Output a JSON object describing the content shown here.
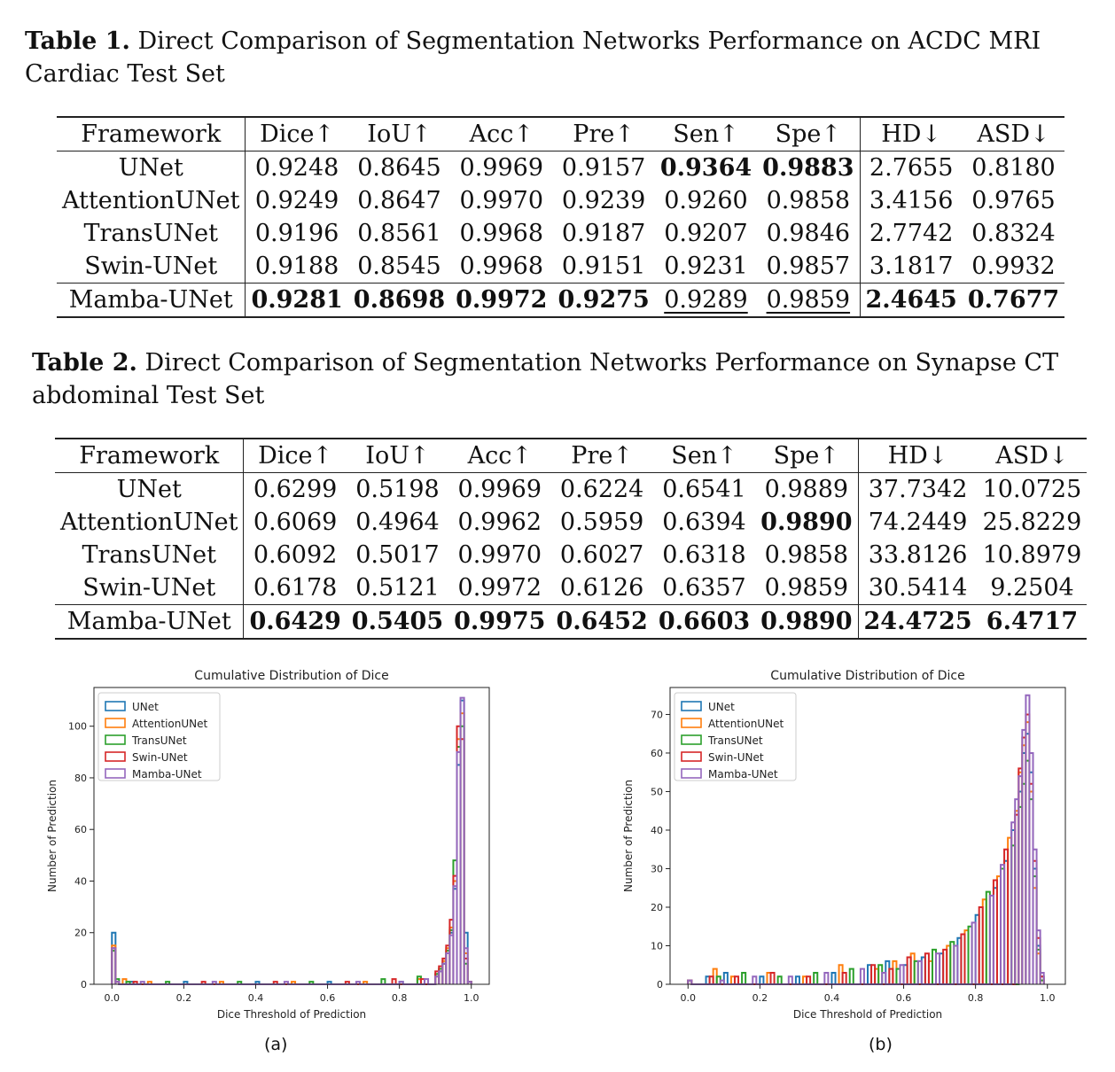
{
  "table1": {
    "label": "Table 1.",
    "caption": "Direct Comparison of Segmentation Networks Performance on ACDC MRI Cardiac Test Set",
    "headers": [
      "Framework",
      "Dice↑",
      "IoU↑",
      "Acc↑",
      "Pre↑",
      "Sen↑",
      "Spe↑",
      "HD↓",
      "ASD↓"
    ],
    "rows": [
      {
        "cells": [
          "UNet",
          "0.9248",
          "0.8645",
          "0.9969",
          "0.9157",
          "0.9364",
          "0.9883",
          "2.7655",
          "0.8180"
        ],
        "bold": [
          5,
          6
        ],
        "underline": []
      },
      {
        "cells": [
          "AttentionUNet",
          "0.9249",
          "0.8647",
          "0.9970",
          "0.9239",
          "0.9260",
          "0.9858",
          "3.4156",
          "0.9765"
        ],
        "bold": [],
        "underline": []
      },
      {
        "cells": [
          "TransUNet",
          "0.9196",
          "0.8561",
          "0.9968",
          "0.9187",
          "0.9207",
          "0.9846",
          "2.7742",
          "0.8324"
        ],
        "bold": [],
        "underline": []
      },
      {
        "cells": [
          "Swin-UNet",
          "0.9188",
          "0.8545",
          "0.9968",
          "0.9151",
          "0.9231",
          "0.9857",
          "3.1817",
          "0.9932"
        ],
        "bold": [],
        "underline": []
      },
      {
        "cells": [
          "Mamba-UNet",
          "0.9281",
          "0.8698",
          "0.9972",
          "0.9275",
          "0.9289",
          "0.9859",
          "2.4645",
          "0.7677"
        ],
        "bold": [
          1,
          2,
          3,
          4,
          7,
          8
        ],
        "underline": [
          5,
          6
        ]
      }
    ]
  },
  "table2": {
    "label": "Table 2.",
    "caption": "Direct Comparison of Segmentation Networks Performance on Synapse CT abdominal Test Set",
    "headers": [
      "Framework",
      "Dice↑",
      "IoU↑",
      "Acc↑",
      "Pre↑",
      "Sen↑",
      "Spe↑",
      "HD↓",
      "ASD↓"
    ],
    "rows": [
      {
        "cells": [
          "UNet",
          "0.6299",
          "0.5198",
          "0.9969",
          "0.6224",
          "0.6541",
          "0.9889",
          "37.7342",
          "10.0725"
        ],
        "bold": [],
        "underline": []
      },
      {
        "cells": [
          "AttentionUNet",
          "0.6069",
          "0.4964",
          "0.9962",
          "0.5959",
          "0.6394",
          "0.9890",
          "74.2449",
          "25.8229"
        ],
        "bold": [
          6
        ],
        "underline": []
      },
      {
        "cells": [
          "TransUNet",
          "0.6092",
          "0.5017",
          "0.9970",
          "0.6027",
          "0.6318",
          "0.9858",
          "33.8126",
          "10.8979"
        ],
        "bold": [],
        "underline": []
      },
      {
        "cells": [
          "Swin-UNet",
          "0.6178",
          "0.5121",
          "0.9972",
          "0.6126",
          "0.6357",
          "0.9859",
          "30.5414",
          "9.2504"
        ],
        "bold": [],
        "underline": []
      },
      {
        "cells": [
          "Mamba-UNet",
          "0.6429",
          "0.5405",
          "0.9975",
          "0.6452",
          "0.6603",
          "0.9890",
          "24.4725",
          "6.4717"
        ],
        "bold": [
          1,
          2,
          3,
          4,
          5,
          6,
          7,
          8
        ],
        "underline": []
      }
    ]
  },
  "chart_data": [
    {
      "type": "histogram",
      "title": "Cumulative Distribution of Dice",
      "xlabel": "Dice Threshold of Prediction",
      "ylabel": "Number of Prediction",
      "xlim": [
        -0.05,
        1.05
      ],
      "ylim": [
        0,
        115
      ],
      "xticks": [
        0.0,
        0.2,
        0.4,
        0.6,
        0.8,
        1.0
      ],
      "yticks": [
        0,
        20,
        40,
        60,
        80,
        100
      ],
      "legend_position": "top-left",
      "subplot_label": "(a)",
      "bin_width": 0.01,
      "series": [
        {
          "name": "UNet",
          "color": "#1f77b4",
          "bins": [
            [
              0.0,
              20
            ],
            [
              0.01,
              1
            ],
            [
              0.05,
              1
            ],
            [
              0.2,
              1
            ],
            [
              0.4,
              1
            ],
            [
              0.6,
              1
            ],
            [
              0.8,
              1
            ],
            [
              0.85,
              2
            ],
            [
              0.9,
              4
            ],
            [
              0.91,
              5
            ],
            [
              0.92,
              8
            ],
            [
              0.93,
              12
            ],
            [
              0.94,
              20
            ],
            [
              0.95,
              37
            ],
            [
              0.96,
              85
            ],
            [
              0.97,
              110
            ],
            [
              0.98,
              20
            ],
            [
              0.99,
              1
            ]
          ]
        },
        {
          "name": "AttentionUNet",
          "color": "#ff7f0e",
          "bins": [
            [
              0.0,
              15
            ],
            [
              0.01,
              1
            ],
            [
              0.03,
              2
            ],
            [
              0.1,
              1
            ],
            [
              0.3,
              1
            ],
            [
              0.5,
              1
            ],
            [
              0.7,
              1
            ],
            [
              0.85,
              2
            ],
            [
              0.9,
              3
            ],
            [
              0.91,
              6
            ],
            [
              0.92,
              9
            ],
            [
              0.93,
              14
            ],
            [
              0.94,
              22
            ],
            [
              0.95,
              40
            ],
            [
              0.96,
              95
            ],
            [
              0.97,
              105
            ],
            [
              0.98,
              12
            ],
            [
              0.99,
              1
            ]
          ]
        },
        {
          "name": "TransUNet",
          "color": "#2ca02c",
          "bins": [
            [
              0.0,
              13
            ],
            [
              0.01,
              2
            ],
            [
              0.04,
              1
            ],
            [
              0.15,
              1
            ],
            [
              0.35,
              1
            ],
            [
              0.55,
              1
            ],
            [
              0.75,
              2
            ],
            [
              0.85,
              3
            ],
            [
              0.9,
              4
            ],
            [
              0.91,
              6
            ],
            [
              0.92,
              8
            ],
            [
              0.93,
              13
            ],
            [
              0.94,
              21
            ],
            [
              0.95,
              48
            ],
            [
              0.96,
              92
            ],
            [
              0.97,
              100
            ],
            [
              0.98,
              8
            ],
            [
              0.99,
              1
            ]
          ]
        },
        {
          "name": "Swin-UNet",
          "color": "#d62728",
          "bins": [
            [
              0.0,
              14
            ],
            [
              0.01,
              1
            ],
            [
              0.06,
              1
            ],
            [
              0.25,
              1
            ],
            [
              0.45,
              1
            ],
            [
              0.65,
              1
            ],
            [
              0.78,
              2
            ],
            [
              0.86,
              2
            ],
            [
              0.9,
              5
            ],
            [
              0.91,
              7
            ],
            [
              0.92,
              10
            ],
            [
              0.93,
              15
            ],
            [
              0.94,
              25
            ],
            [
              0.95,
              42
            ],
            [
              0.96,
              100
            ],
            [
              0.97,
              95
            ],
            [
              0.98,
              10
            ],
            [
              0.99,
              1
            ]
          ]
        },
        {
          "name": "Mamba-UNet",
          "color": "#9467bd",
          "bins": [
            [
              0.0,
              14
            ],
            [
              0.01,
              1
            ],
            [
              0.08,
              1
            ],
            [
              0.28,
              1
            ],
            [
              0.48,
              1
            ],
            [
              0.68,
              1
            ],
            [
              0.8,
              1
            ],
            [
              0.87,
              2
            ],
            [
              0.9,
              3
            ],
            [
              0.91,
              5
            ],
            [
              0.92,
              8
            ],
            [
              0.93,
              12
            ],
            [
              0.94,
              19
            ],
            [
              0.95,
              38
            ],
            [
              0.96,
              90
            ],
            [
              0.97,
              111
            ],
            [
              0.98,
              14
            ],
            [
              0.99,
              1
            ]
          ]
        }
      ]
    },
    {
      "type": "histogram",
      "title": "Cumulative Distribution of Dice",
      "xlabel": "Dice Threshold of Prediction",
      "ylabel": "Number of Prediction",
      "xlim": [
        -0.05,
        1.05
      ],
      "ylim": [
        0,
        77
      ],
      "xticks": [
        0.0,
        0.2,
        0.4,
        0.6,
        0.8,
        1.0
      ],
      "yticks": [
        0,
        10,
        20,
        30,
        40,
        50,
        60,
        70
      ],
      "legend_position": "top-left",
      "subplot_label": "(b)",
      "bin_width": 0.01,
      "series": [
        {
          "name": "UNet",
          "color": "#1f77b4",
          "bins": [
            [
              0.0,
              1
            ],
            [
              0.05,
              2
            ],
            [
              0.1,
              3
            ],
            [
              0.2,
              2
            ],
            [
              0.3,
              2
            ],
            [
              0.4,
              3
            ],
            [
              0.5,
              5
            ],
            [
              0.55,
              6
            ],
            [
              0.6,
              5
            ],
            [
              0.65,
              7
            ],
            [
              0.7,
              8
            ],
            [
              0.75,
              12
            ],
            [
              0.8,
              18
            ],
            [
              0.85,
              25
            ],
            [
              0.88,
              32
            ],
            [
              0.9,
              40
            ],
            [
              0.92,
              50
            ],
            [
              0.93,
              60
            ],
            [
              0.94,
              65
            ],
            [
              0.95,
              55
            ],
            [
              0.96,
              30
            ],
            [
              0.97,
              10
            ],
            [
              0.98,
              2
            ]
          ]
        },
        {
          "name": "AttentionUNet",
          "color": "#ff7f0e",
          "bins": [
            [
              0.0,
              1
            ],
            [
              0.07,
              4
            ],
            [
              0.12,
              2
            ],
            [
              0.22,
              3
            ],
            [
              0.32,
              2
            ],
            [
              0.42,
              5
            ],
            [
              0.52,
              4
            ],
            [
              0.57,
              6
            ],
            [
              0.62,
              8
            ],
            [
              0.67,
              6
            ],
            [
              0.72,
              10
            ],
            [
              0.77,
              14
            ],
            [
              0.82,
              22
            ],
            [
              0.86,
              28
            ],
            [
              0.89,
              38
            ],
            [
              0.91,
              45
            ],
            [
              0.92,
              55
            ],
            [
              0.93,
              62
            ],
            [
              0.94,
              68
            ],
            [
              0.95,
              50
            ],
            [
              0.96,
              25
            ],
            [
              0.97,
              8
            ],
            [
              0.98,
              1
            ]
          ]
        },
        {
          "name": "TransUNet",
          "color": "#2ca02c",
          "bins": [
            [
              0.0,
              1
            ],
            [
              0.08,
              2
            ],
            [
              0.15,
              3
            ],
            [
              0.25,
              2
            ],
            [
              0.35,
              3
            ],
            [
              0.45,
              4
            ],
            [
              0.53,
              5
            ],
            [
              0.58,
              4
            ],
            [
              0.63,
              6
            ],
            [
              0.68,
              9
            ],
            [
              0.73,
              11
            ],
            [
              0.78,
              15
            ],
            [
              0.83,
              24
            ],
            [
              0.87,
              30
            ],
            [
              0.9,
              36
            ],
            [
              0.92,
              46
            ],
            [
              0.93,
              52
            ],
            [
              0.94,
              58
            ],
            [
              0.95,
              48
            ],
            [
              0.96,
              28
            ],
            [
              0.97,
              9
            ],
            [
              0.98,
              1
            ]
          ]
        },
        {
          "name": "Swin-UNet",
          "color": "#d62728",
          "bins": [
            [
              0.0,
              1
            ],
            [
              0.06,
              2
            ],
            [
              0.13,
              2
            ],
            [
              0.23,
              3
            ],
            [
              0.33,
              2
            ],
            [
              0.43,
              3
            ],
            [
              0.51,
              5
            ],
            [
              0.56,
              4
            ],
            [
              0.61,
              7
            ],
            [
              0.66,
              8
            ],
            [
              0.71,
              9
            ],
            [
              0.76,
              13
            ],
            [
              0.81,
              20
            ],
            [
              0.85,
              27
            ],
            [
              0.88,
              35
            ],
            [
              0.91,
              44
            ],
            [
              0.92,
              56
            ],
            [
              0.93,
              64
            ],
            [
              0.94,
              70
            ],
            [
              0.95,
              52
            ],
            [
              0.96,
              32
            ],
            [
              0.97,
              12
            ],
            [
              0.98,
              2
            ]
          ]
        },
        {
          "name": "Mamba-UNet",
          "color": "#9467bd",
          "bins": [
            [
              0.0,
              1
            ],
            [
              0.09,
              1
            ],
            [
              0.18,
              2
            ],
            [
              0.28,
              2
            ],
            [
              0.38,
              3
            ],
            [
              0.48,
              4
            ],
            [
              0.54,
              3
            ],
            [
              0.59,
              5
            ],
            [
              0.64,
              6
            ],
            [
              0.69,
              8
            ],
            [
              0.74,
              10
            ],
            [
              0.79,
              16
            ],
            [
              0.84,
              23
            ],
            [
              0.87,
              31
            ],
            [
              0.9,
              42
            ],
            [
              0.91,
              48
            ],
            [
              0.92,
              54
            ],
            [
              0.93,
              66
            ],
            [
              0.94,
              75
            ],
            [
              0.95,
              60
            ],
            [
              0.96,
              35
            ],
            [
              0.97,
              14
            ],
            [
              0.98,
              3
            ]
          ]
        }
      ]
    }
  ]
}
